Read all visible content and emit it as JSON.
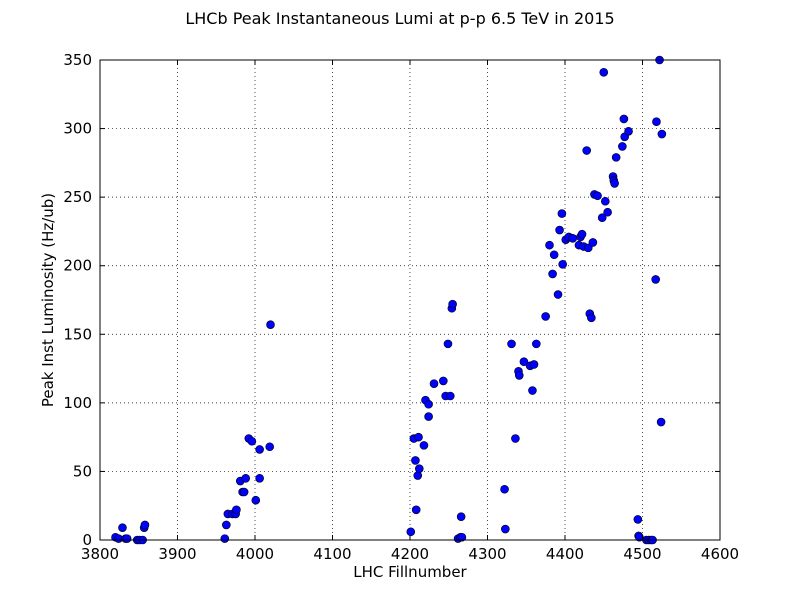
{
  "chart_data": {
    "type": "scatter",
    "title": "LHCb Peak Instantaneous Lumi at p-p 6.5 TeV in 2015",
    "xlabel": "LHC Fillnumber",
    "ylabel": "Peak Inst Luminosity (Hz/ub)",
    "xlim": [
      3800,
      4600
    ],
    "ylim": [
      0,
      350
    ],
    "xticks": [
      3800,
      3900,
      4000,
      4100,
      4200,
      4300,
      4400,
      4500,
      4600
    ],
    "yticks": [
      0,
      50,
      100,
      150,
      200,
      250,
      300,
      350
    ],
    "grid": true,
    "marker_color": "#0000ff",
    "marker_edge": "#000000",
    "points": [
      [
        3820,
        2
      ],
      [
        3824,
        1
      ],
      [
        3829,
        9
      ],
      [
        3833,
        1
      ],
      [
        3835,
        1
      ],
      [
        3848,
        0
      ],
      [
        3851,
        0
      ],
      [
        3855,
        0
      ],
      [
        3857,
        9
      ],
      [
        3858,
        11
      ],
      [
        3961,
        1
      ],
      [
        3963,
        11
      ],
      [
        3965,
        19
      ],
      [
        3971,
        19
      ],
      [
        3975,
        19
      ],
      [
        3976,
        22
      ],
      [
        3981,
        43
      ],
      [
        3984,
        35
      ],
      [
        3986,
        35
      ],
      [
        3988,
        45
      ],
      [
        3992,
        74
      ],
      [
        3996,
        72
      ],
      [
        4001,
        29
      ],
      [
        4006,
        66
      ],
      [
        4006,
        45
      ],
      [
        4019,
        68
      ],
      [
        4020,
        157
      ],
      [
        4201,
        6
      ],
      [
        4205,
        74
      ],
      [
        4207,
        58
      ],
      [
        4208,
        22
      ],
      [
        4210,
        47
      ],
      [
        4211,
        75
      ],
      [
        4212,
        52
      ],
      [
        4218,
        69
      ],
      [
        4220,
        102
      ],
      [
        4224,
        99
      ],
      [
        4224,
        90
      ],
      [
        4231,
        114
      ],
      [
        4243,
        116
      ],
      [
        4246,
        105
      ],
      [
        4249,
        143
      ],
      [
        4252,
        105
      ],
      [
        4254,
        169
      ],
      [
        4255,
        172
      ],
      [
        4262,
        1
      ],
      [
        4265,
        2
      ],
      [
        4266,
        17
      ],
      [
        4267,
        2
      ],
      [
        4322,
        37
      ],
      [
        4323,
        8
      ],
      [
        4331,
        143
      ],
      [
        4336,
        74
      ],
      [
        4340,
        123
      ],
      [
        4341,
        120
      ],
      [
        4347,
        130
      ],
      [
        4355,
        127
      ],
      [
        4358,
        109
      ],
      [
        4360,
        128
      ],
      [
        4363,
        143
      ],
      [
        4375,
        163
      ],
      [
        4380,
        215
      ],
      [
        4384,
        194
      ],
      [
        4386,
        208
      ],
      [
        4391,
        179
      ],
      [
        4393,
        226
      ],
      [
        4396,
        238
      ],
      [
        4397,
        201
      ],
      [
        4401,
        219
      ],
      [
        4405,
        221
      ],
      [
        4410,
        220
      ],
      [
        4418,
        215
      ],
      [
        4420,
        221
      ],
      [
        4422,
        223
      ],
      [
        4424,
        214
      ],
      [
        4428,
        284
      ],
      [
        4430,
        213
      ],
      [
        4432,
        165
      ],
      [
        4434,
        162
      ],
      [
        4436,
        217
      ],
      [
        4438,
        252
      ],
      [
        4442,
        251
      ],
      [
        4448,
        235
      ],
      [
        4450,
        341
      ],
      [
        4452,
        247
      ],
      [
        4455,
        239
      ],
      [
        4462,
        265
      ],
      [
        4463,
        262
      ],
      [
        4464,
        260
      ],
      [
        4466,
        279
      ],
      [
        4474,
        287
      ],
      [
        4476,
        307
      ],
      [
        4477,
        294
      ],
      [
        4482,
        298
      ],
      [
        4494,
        15
      ],
      [
        4495,
        3
      ],
      [
        4496,
        2
      ],
      [
        4505,
        0
      ],
      [
        4508,
        0
      ],
      [
        4511,
        0
      ],
      [
        4513,
        0
      ],
      [
        4517,
        190
      ],
      [
        4518,
        305
      ],
      [
        4522,
        350
      ],
      [
        4524,
        86
      ],
      [
        4525,
        296
      ]
    ]
  }
}
